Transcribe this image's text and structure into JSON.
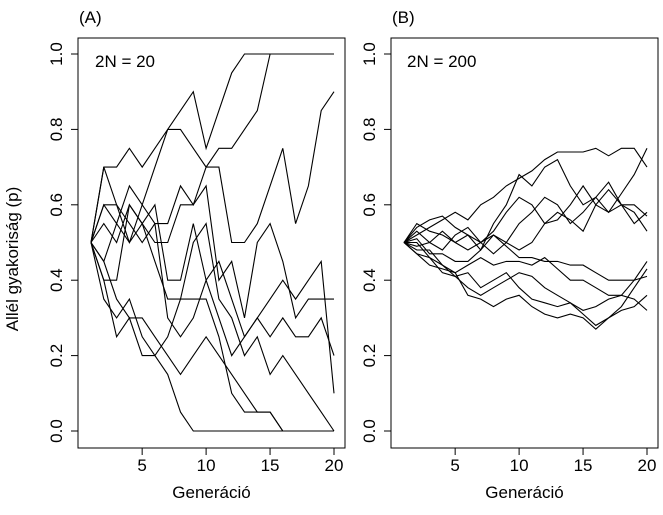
{
  "shared": {
    "ylabel": "Allél gyakoriság (p)",
    "xlabel": "Generáció",
    "x_ticks": [
      5,
      10,
      15,
      20
    ],
    "y_ticks": [
      "0.0",
      "0.2",
      "0.4",
      "0.6",
      "0.8",
      "1.0"
    ]
  },
  "chart_data": [
    {
      "type": "line",
      "panel_label": "(A)",
      "annotation": "2N = 20",
      "xlabel": "Generáció",
      "ylabel": "Allél gyakoriság (p)",
      "xlim": [
        0,
        21
      ],
      "ylim": [
        0,
        1
      ],
      "grid": false,
      "x": [
        1,
        2,
        3,
        4,
        5,
        6,
        7,
        8,
        9,
        10,
        11,
        12,
        13,
        14,
        15,
        16,
        17,
        18,
        19,
        20
      ],
      "series": [
        {
          "values": [
            0.5,
            0.7,
            0.7,
            0.75,
            0.7,
            0.75,
            0.8,
            0.85,
            0.9,
            0.75,
            0.85,
            0.95,
            1.0,
            1.0,
            1.0,
            1.0,
            1.0,
            1.0,
            1.0,
            1.0
          ]
        },
        {
          "values": [
            0.5,
            0.6,
            0.55,
            0.65,
            0.6,
            0.7,
            0.8,
            0.8,
            0.75,
            0.7,
            0.75,
            0.75,
            0.8,
            0.85,
            1.0,
            1.0,
            1.0,
            1.0,
            1.0,
            1.0
          ]
        },
        {
          "values": [
            0.5,
            0.7,
            0.6,
            0.55,
            0.5,
            0.55,
            0.55,
            0.65,
            0.6,
            0.7,
            0.7,
            0.5,
            0.5,
            0.55,
            0.65,
            0.75,
            0.55,
            0.65,
            0.85,
            0.9
          ]
        },
        {
          "values": [
            0.5,
            0.55,
            0.5,
            0.6,
            0.55,
            0.5,
            0.5,
            0.6,
            0.6,
            0.65,
            0.4,
            0.45,
            0.3,
            0.5,
            0.55,
            0.45,
            0.3,
            0.35,
            0.35,
            0.35
          ]
        },
        {
          "values": [
            0.5,
            0.4,
            0.4,
            0.6,
            0.55,
            0.6,
            0.4,
            0.4,
            0.55,
            0.4,
            0.45,
            0.35,
            0.25,
            0.3,
            0.25,
            0.3,
            0.25,
            0.25,
            0.3,
            0.2
          ]
        },
        {
          "values": [
            0.5,
            0.45,
            0.55,
            0.5,
            0.6,
            0.55,
            0.3,
            0.25,
            0.3,
            0.4,
            0.3,
            0.2,
            0.25,
            0.3,
            0.35,
            0.4,
            0.35,
            0.4,
            0.45,
            0.1
          ]
        },
        {
          "values": [
            0.5,
            0.6,
            0.6,
            0.5,
            0.55,
            0.45,
            0.35,
            0.35,
            0.5,
            0.55,
            0.35,
            0.3,
            0.2,
            0.25,
            0.15,
            0.2,
            0.15,
            0.1,
            0.05,
            0.0
          ]
        },
        {
          "values": [
            0.5,
            0.45,
            0.35,
            0.3,
            0.3,
            0.25,
            0.2,
            0.15,
            0.2,
            0.25,
            0.2,
            0.15,
            0.1,
            0.05,
            0.05,
            0.0,
            0.0,
            0.0,
            0.0,
            0.0
          ]
        },
        {
          "values": [
            0.5,
            0.35,
            0.3,
            0.35,
            0.25,
            0.2,
            0.15,
            0.05,
            0.0,
            0.0,
            0.0,
            0.0,
            0.0,
            0.0,
            0.0,
            0.0,
            0.0,
            0.0,
            0.0,
            0.0
          ]
        },
        {
          "values": [
            0.5,
            0.4,
            0.25,
            0.3,
            0.2,
            0.2,
            0.25,
            0.35,
            0.35,
            0.35,
            0.25,
            0.1,
            0.05,
            0.05,
            0.05,
            0.0,
            0.0,
            0.0,
            0.0,
            0.0
          ]
        }
      ]
    },
    {
      "type": "line",
      "panel_label": "(B)",
      "annotation": "2N = 200",
      "xlabel": "Generáció",
      "ylim": [
        0,
        1
      ],
      "xlim": [
        0,
        21
      ],
      "grid": false,
      "x": [
        1,
        2,
        3,
        4,
        5,
        6,
        7,
        8,
        9,
        10,
        11,
        12,
        13,
        14,
        15,
        16,
        17,
        18,
        19,
        20
      ],
      "series": [
        {
          "values": [
            0.5,
            0.52,
            0.54,
            0.56,
            0.58,
            0.56,
            0.6,
            0.62,
            0.65,
            0.67,
            0.69,
            0.72,
            0.74,
            0.74,
            0.74,
            0.75,
            0.73,
            0.75,
            0.75,
            0.7
          ]
        },
        {
          "values": [
            0.5,
            0.55,
            0.53,
            0.52,
            0.5,
            0.52,
            0.48,
            0.55,
            0.6,
            0.68,
            0.65,
            0.7,
            0.72,
            0.65,
            0.6,
            0.62,
            0.58,
            0.63,
            0.68,
            0.75
          ]
        },
        {
          "values": [
            0.5,
            0.54,
            0.56,
            0.57,
            0.54,
            0.52,
            0.5,
            0.53,
            0.58,
            0.62,
            0.6,
            0.55,
            0.56,
            0.6,
            0.65,
            0.6,
            0.58,
            0.6,
            0.6,
            0.57
          ]
        },
        {
          "values": [
            0.5,
            0.53,
            0.5,
            0.53,
            0.5,
            0.48,
            0.5,
            0.52,
            0.5,
            0.55,
            0.58,
            0.62,
            0.6,
            0.55,
            0.58,
            0.62,
            0.66,
            0.6,
            0.58,
            0.53
          ]
        },
        {
          "values": [
            0.5,
            0.49,
            0.5,
            0.48,
            0.52,
            0.54,
            0.5,
            0.47,
            0.5,
            0.48,
            0.5,
            0.55,
            0.58,
            0.56,
            0.53,
            0.6,
            0.64,
            0.6,
            0.55,
            0.58
          ]
        },
        {
          "values": [
            0.5,
            0.51,
            0.47,
            0.47,
            0.45,
            0.45,
            0.48,
            0.52,
            0.49,
            0.46,
            0.46,
            0.45,
            0.45,
            0.44,
            0.44,
            0.42,
            0.4,
            0.4,
            0.4,
            0.41
          ]
        },
        {
          "values": [
            0.5,
            0.48,
            0.48,
            0.44,
            0.42,
            0.44,
            0.46,
            0.44,
            0.45,
            0.45,
            0.44,
            0.46,
            0.43,
            0.4,
            0.4,
            0.38,
            0.36,
            0.36,
            0.4,
            0.45
          ]
        },
        {
          "values": [
            0.5,
            0.5,
            0.46,
            0.44,
            0.41,
            0.38,
            0.36,
            0.38,
            0.4,
            0.42,
            0.41,
            0.38,
            0.36,
            0.34,
            0.32,
            0.33,
            0.35,
            0.36,
            0.35,
            0.32
          ]
        },
        {
          "values": [
            0.5,
            0.47,
            0.46,
            0.42,
            0.41,
            0.42,
            0.38,
            0.4,
            0.42,
            0.38,
            0.35,
            0.34,
            0.33,
            0.34,
            0.31,
            0.28,
            0.3,
            0.32,
            0.33,
            0.36
          ]
        },
        {
          "values": [
            0.5,
            0.47,
            0.44,
            0.43,
            0.42,
            0.36,
            0.35,
            0.33,
            0.35,
            0.36,
            0.33,
            0.31,
            0.3,
            0.31,
            0.3,
            0.27,
            0.3,
            0.33,
            0.38,
            0.43
          ]
        }
      ]
    }
  ]
}
